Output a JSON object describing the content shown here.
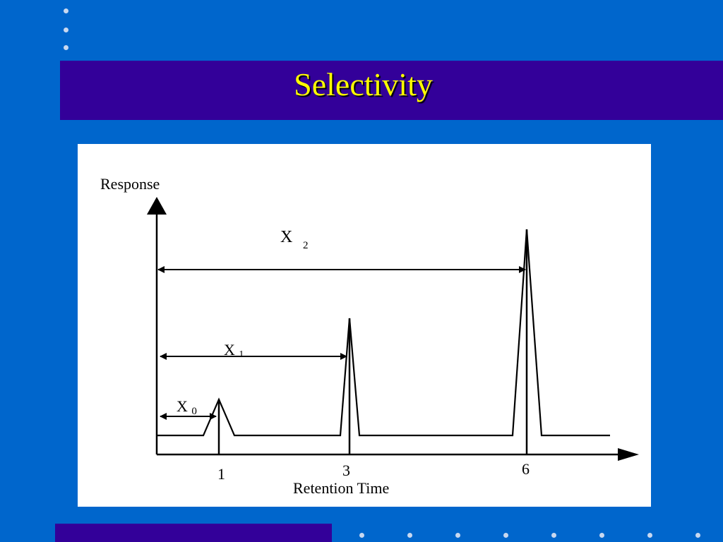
{
  "slide": {
    "title": "Selectivity",
    "colors": {
      "background": "#0066CC",
      "title_bar": "#330099",
      "title_text": "#FFFF00",
      "panel": "#FFFFFF",
      "bullet_dots": "#C8D8F0"
    }
  },
  "diagram": {
    "y_axis_label": "Response",
    "x_axis_label": "Retention Time",
    "tick_labels": [
      "1",
      "3",
      "6"
    ],
    "distance_labels": [
      {
        "main": "X",
        "sub": "2"
      },
      {
        "main": "X",
        "sub": "1"
      },
      {
        "main": "X",
        "sub": "0"
      }
    ]
  }
}
